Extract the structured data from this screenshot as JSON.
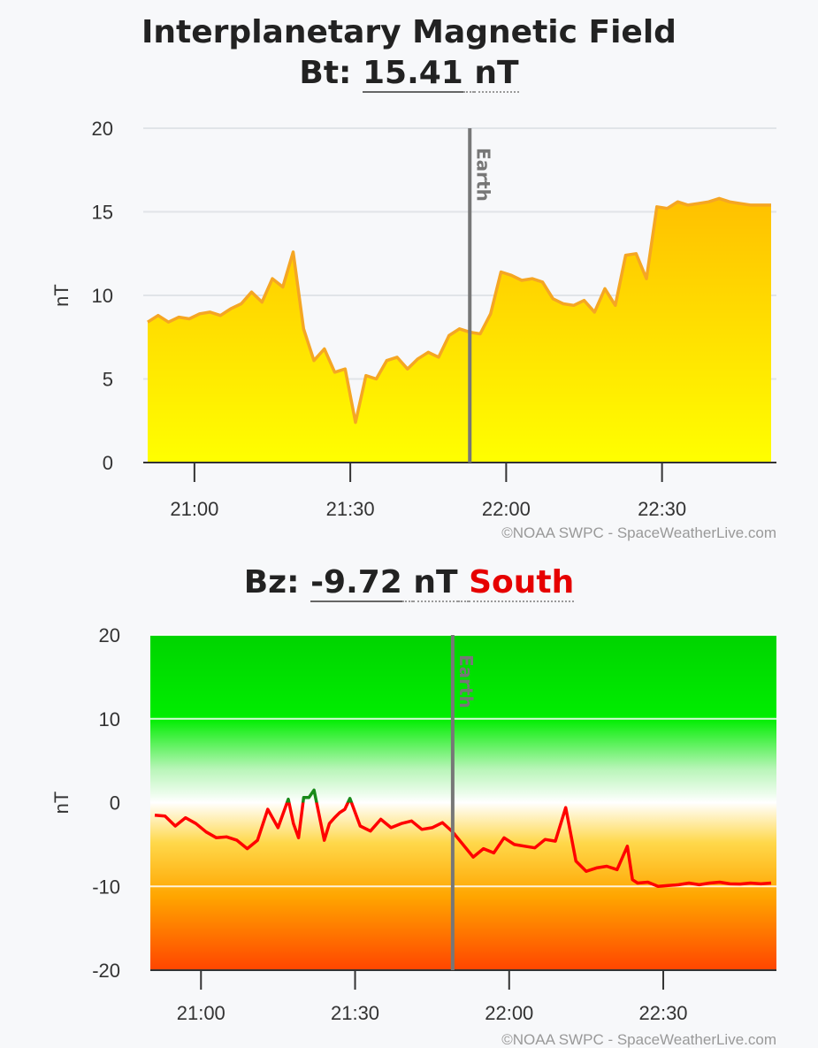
{
  "header": {
    "title": "Interplanetary Magnetic Field",
    "bt_label": "Bt:",
    "bt_value": "15.41",
    "bt_unit": "nT",
    "bz_label": "Bz:",
    "bz_value": "-9.72",
    "bz_unit": "nT",
    "bz_direction": "South"
  },
  "colors": {
    "bt_line": "#f5a623",
    "bt_fill_top": "#ffc000",
    "bt_fill_bottom": "#ffff00",
    "bz_positive": "#1a8a1a",
    "bz_negative": "#ff0000",
    "south": "#e60000",
    "earth_marker": "#777777"
  },
  "chart_data": [
    {
      "id": "bt",
      "type": "area",
      "title": "Bt: 15.41 nT",
      "ylabel": "nT",
      "xlabel": "",
      "ylim": [
        0,
        20
      ],
      "yticks": [
        0,
        5,
        10,
        15,
        20
      ],
      "xlim": [
        "20:51",
        "22:51"
      ],
      "xticks": [
        "21:00",
        "21:30",
        "22:00",
        "22:30"
      ],
      "grid": true,
      "marker": {
        "label": "Earth",
        "x": "21:53"
      },
      "credit": "©NOAA SWPC - SpaceWeatherLive.com",
      "x": [
        "20:51",
        "20:53",
        "20:55",
        "20:57",
        "20:59",
        "21:01",
        "21:03",
        "21:05",
        "21:07",
        "21:09",
        "21:11",
        "21:13",
        "21:15",
        "21:17",
        "21:19",
        "21:21",
        "21:23",
        "21:25",
        "21:27",
        "21:29",
        "21:31",
        "21:33",
        "21:35",
        "21:37",
        "21:39",
        "21:41",
        "21:43",
        "21:45",
        "21:47",
        "21:49",
        "21:51",
        "21:53",
        "21:55",
        "21:57",
        "21:59",
        "22:01",
        "22:03",
        "22:05",
        "22:07",
        "22:09",
        "22:11",
        "22:13",
        "22:15",
        "22:17",
        "22:19",
        "22:21",
        "22:23",
        "22:25",
        "22:27",
        "22:29",
        "22:31",
        "22:33",
        "22:35",
        "22:37",
        "22:39",
        "22:41",
        "22:43",
        "22:45",
        "22:47",
        "22:49",
        "22:51"
      ],
      "values": [
        8.4,
        8.8,
        8.4,
        8.7,
        8.6,
        8.9,
        9.0,
        8.8,
        9.2,
        9.5,
        10.2,
        9.6,
        11.0,
        10.5,
        12.6,
        8.0,
        6.1,
        6.8,
        5.4,
        5.6,
        2.4,
        5.2,
        5.0,
        6.1,
        6.3,
        5.6,
        6.2,
        6.6,
        6.3,
        7.6,
        8.0,
        7.8,
        7.7,
        8.9,
        11.4,
        11.2,
        10.9,
        11.0,
        10.8,
        9.8,
        9.5,
        9.4,
        9.7,
        9.0,
        10.4,
        9.4,
        12.4,
        12.5,
        11.0,
        15.3,
        15.2,
        15.6,
        15.4,
        15.5,
        15.6,
        15.8,
        15.6,
        15.5,
        15.4,
        15.4,
        15.4
      ]
    },
    {
      "id": "bz",
      "type": "line",
      "title": "Bz: -9.72 nT South",
      "ylabel": "nT",
      "xlabel": "",
      "ylim": [
        -20,
        20
      ],
      "yticks": [
        -20,
        -10,
        0,
        10,
        20
      ],
      "xlim": [
        "20:51",
        "22:51"
      ],
      "xticks": [
        "21:00",
        "21:30",
        "22:00",
        "22:30"
      ],
      "grid": true,
      "marker": {
        "label": "Earth",
        "x": "21:49"
      },
      "credit": "©NOAA SWPC - SpaceWeatherLive.com",
      "x": [
        "20:51",
        "20:53",
        "20:55",
        "20:57",
        "20:59",
        "21:01",
        "21:03",
        "21:05",
        "21:07",
        "21:09",
        "21:11",
        "21:13",
        "21:15",
        "21:17",
        "21:18",
        "21:19",
        "21:20",
        "21:21",
        "21:22",
        "21:23",
        "21:24",
        "21:25",
        "21:26",
        "21:27",
        "21:28",
        "21:29",
        "21:31",
        "21:33",
        "21:35",
        "21:37",
        "21:39",
        "21:41",
        "21:43",
        "21:45",
        "21:47",
        "21:49",
        "21:51",
        "21:53",
        "21:55",
        "21:57",
        "21:59",
        "22:01",
        "22:03",
        "22:05",
        "22:07",
        "22:09",
        "22:11",
        "22:13",
        "22:15",
        "22:17",
        "22:19",
        "22:21",
        "22:23",
        "22:24",
        "22:25",
        "22:27",
        "22:29",
        "22:31",
        "22:33",
        "22:35",
        "22:37",
        "22:39",
        "22:41",
        "22:43",
        "22:45",
        "22:47",
        "22:49",
        "22:51"
      ],
      "values": [
        -1.5,
        -1.6,
        -2.8,
        -1.8,
        -2.5,
        -3.5,
        -4.2,
        -4.1,
        -4.5,
        -5.5,
        -4.5,
        -0.8,
        -3.0,
        0.4,
        -2.5,
        -4.2,
        0.6,
        0.6,
        1.5,
        -1.5,
        -4.5,
        -2.5,
        -1.8,
        -1.2,
        -0.8,
        0.5,
        -2.8,
        -3.4,
        -2.0,
        -3.0,
        -2.5,
        -2.2,
        -3.2,
        -3.0,
        -2.4,
        -3.5,
        -5.0,
        -6.5,
        -5.5,
        -6.0,
        -4.2,
        -5.0,
        -5.2,
        -5.4,
        -4.4,
        -4.6,
        -0.6,
        -7.0,
        -8.2,
        -7.8,
        -7.6,
        -8.0,
        -5.2,
        -9.2,
        -9.6,
        -9.5,
        -10.0,
        -9.9,
        -9.8,
        -9.6,
        -9.8,
        -9.6,
        -9.5,
        -9.7,
        -9.72,
        -9.6,
        -9.7,
        -9.6
      ]
    }
  ]
}
